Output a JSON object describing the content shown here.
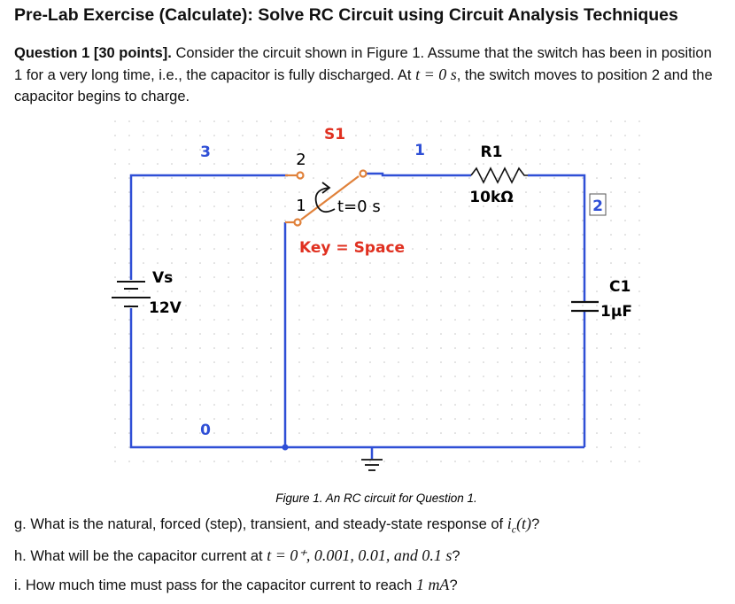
{
  "title": "Pre-Lab Exercise (Calculate): Solve RC Circuit using Circuit Analysis Techniques",
  "question": {
    "label": "Question 1 [30 points].",
    "text_before": "Consider the circuit shown in Figure 1. Assume that the switch has been in position 1 for a very long time, i.e., the capacitor is fully discharged. At",
    "math": "t = 0 s",
    "text_after": ", the switch moves to position 2 and the capacitor begins to charge."
  },
  "figure": {
    "switch": {
      "name": "S1",
      "pin_a": "2",
      "pin_b": "1",
      "time": "t=0 s",
      "key": "Key = Space"
    },
    "resistor": {
      "name": "R1",
      "value": "10kΩ"
    },
    "source": {
      "name": "Vs",
      "value": "12V"
    },
    "capacitor": {
      "name": "C1",
      "value": "1µF"
    },
    "nodes": [
      "3",
      "0",
      "1",
      "2"
    ],
    "caption": "Figure 1. An RC circuit for Question 1."
  },
  "questions": [
    {
      "text": "g. What is the natural, forced (step), transient, and steady-state response of",
      "math": "i",
      "sub": "c",
      "arg": "(t)",
      "end": "?"
    },
    {
      "text": "h. What will be the capacitor current at",
      "math": "t = 0⁺, 0.001, 0.01, and 0.1 s",
      "end": "?"
    },
    {
      "text": "i. How much time must pass for the capacitor current to reach",
      "math": "1 mA",
      "end": "?"
    }
  ]
}
